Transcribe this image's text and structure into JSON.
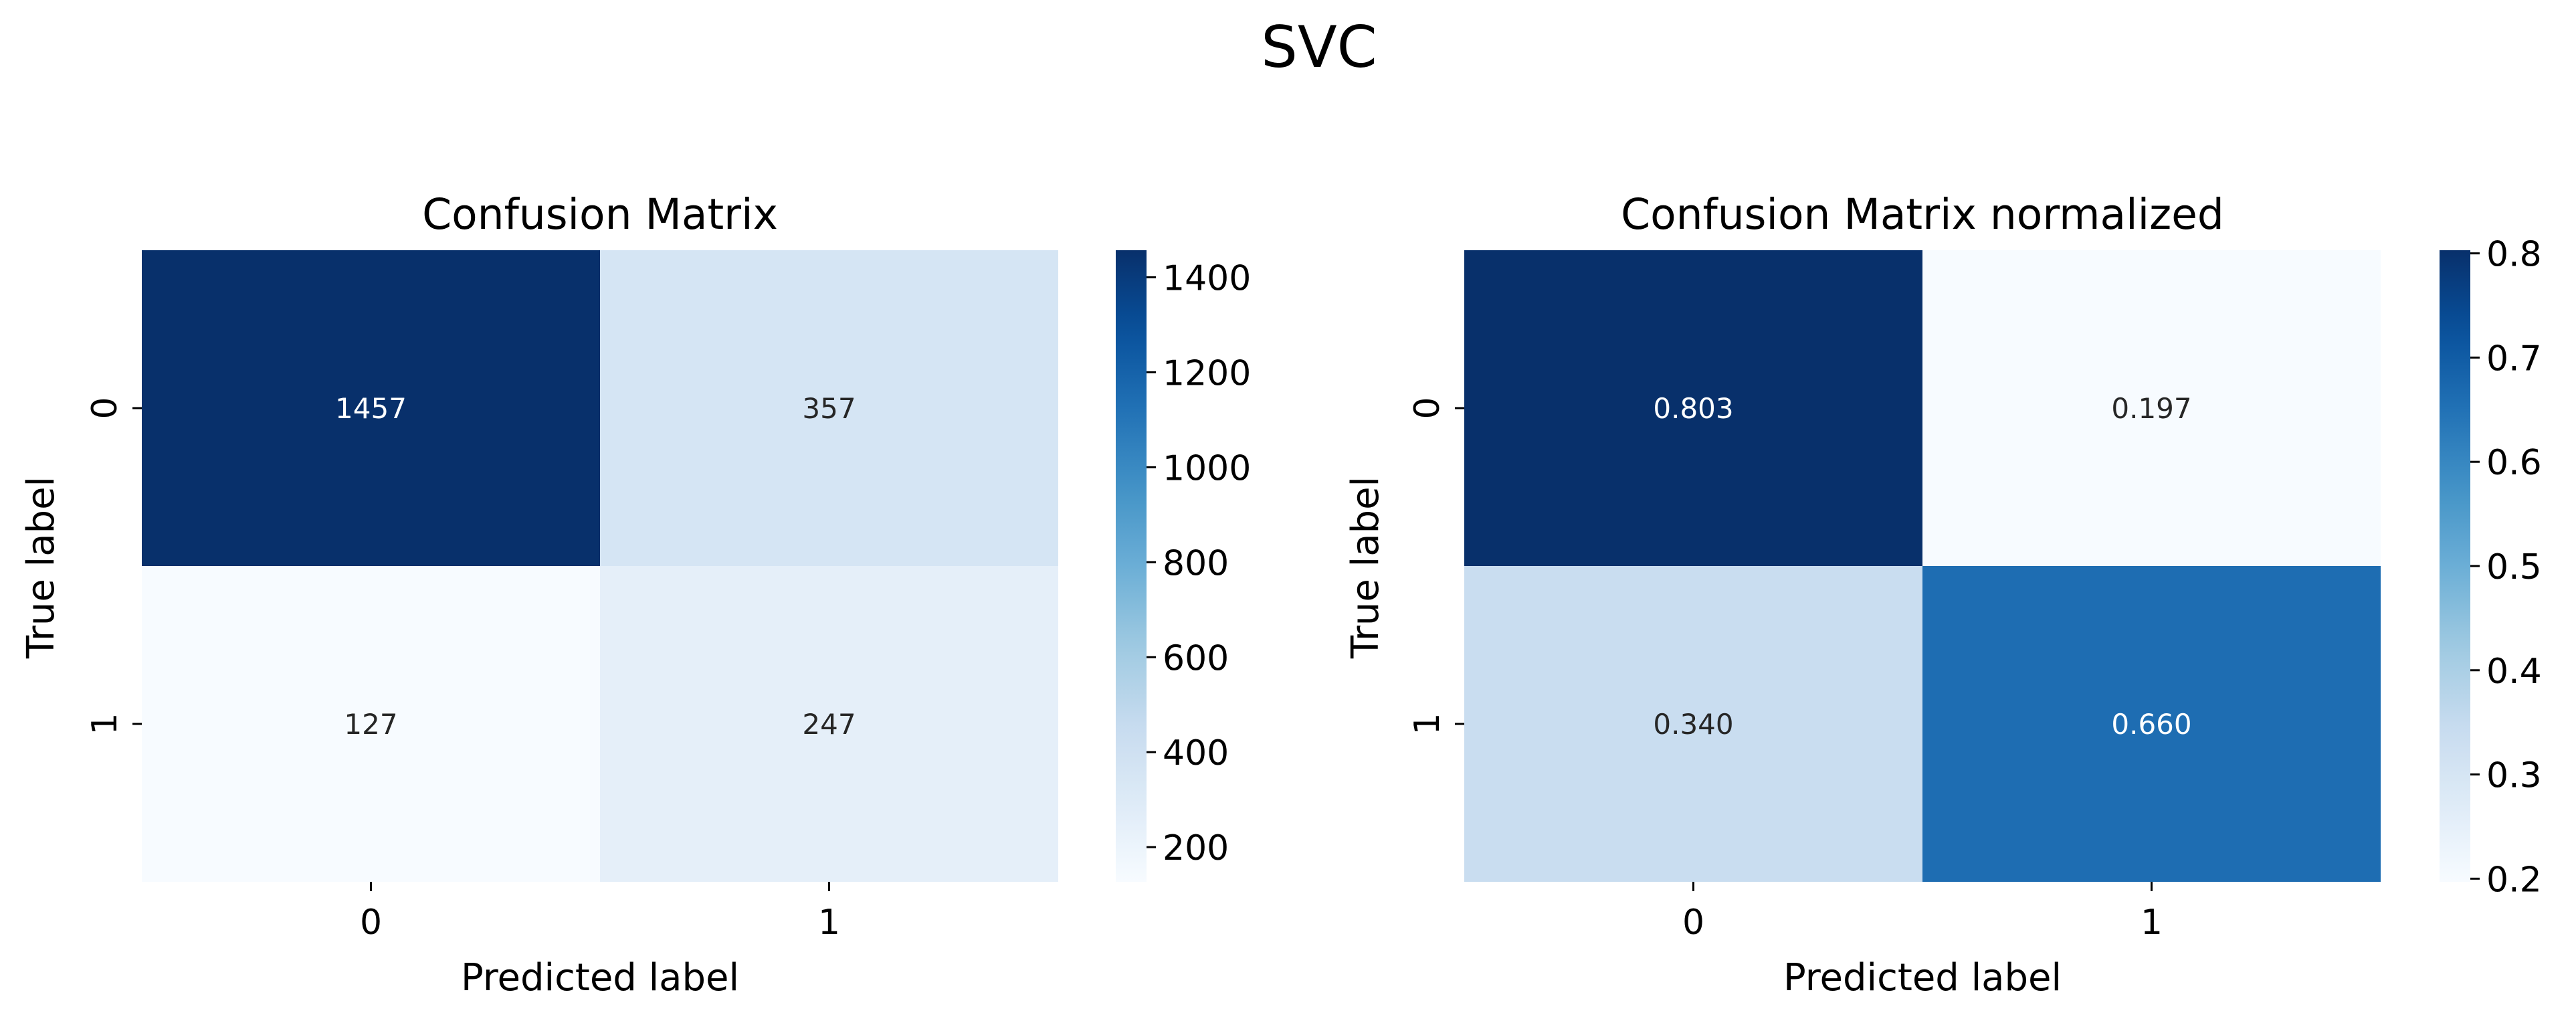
{
  "figure": {
    "title": "SVC"
  },
  "colormap": {
    "name": "Blues",
    "stops": [
      "#f7fbff",
      "#deebf7",
      "#c6dbef",
      "#9ecae1",
      "#6baed6",
      "#4292c6",
      "#2171b5",
      "#08519c",
      "#08306b"
    ]
  },
  "chart_data": [
    {
      "type": "heatmap",
      "title": "Confusion Matrix",
      "xlabel": "Predicted label",
      "ylabel": "True label",
      "x_categories": [
        "0",
        "1"
      ],
      "y_categories": [
        "0",
        "1"
      ],
      "values": [
        [
          1457,
          357
        ],
        [
          127,
          247
        ]
      ],
      "annotations": [
        [
          "1457",
          "357"
        ],
        [
          "127",
          "247"
        ]
      ],
      "colorbar": {
        "vmin": 127,
        "vmax": 1457,
        "ticks": [
          200,
          400,
          600,
          800,
          1000,
          1200,
          1400
        ]
      }
    },
    {
      "type": "heatmap",
      "title": "Confusion Matrix normalized",
      "xlabel": "Predicted label",
      "ylabel": "True label",
      "x_categories": [
        "0",
        "1"
      ],
      "y_categories": [
        "0",
        "1"
      ],
      "values": [
        [
          0.803,
          0.197
        ],
        [
          0.34,
          0.66
        ]
      ],
      "annotations": [
        [
          "0.803",
          "0.197"
        ],
        [
          "0.340",
          "0.660"
        ]
      ],
      "colorbar": {
        "vmin": 0.197,
        "vmax": 0.803,
        "ticks": [
          0.2,
          0.3,
          0.4,
          0.5,
          0.6,
          0.7,
          0.8
        ]
      }
    }
  ]
}
